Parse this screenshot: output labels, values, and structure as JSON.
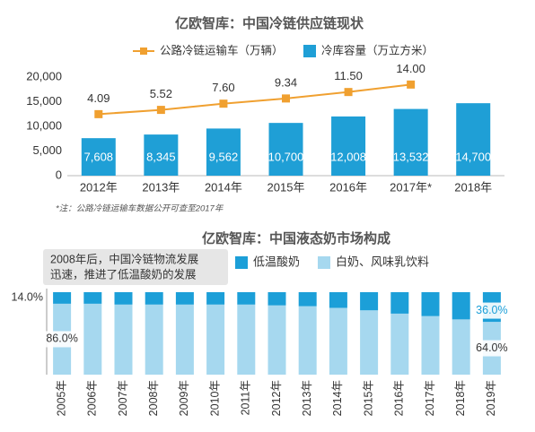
{
  "chart_data": [
    {
      "type": "bar",
      "title": "亿欧智库：中国冷链供应链现状",
      "categories": [
        "2012年",
        "2013年",
        "2014年",
        "2015年",
        "2016年",
        "2017年*",
        "2018年"
      ],
      "series": [
        {
          "name": "公路冷链运输车（万辆）",
          "type": "line",
          "axis": "y2",
          "color": "#f0a030",
          "values": [
            4.09,
            5.52,
            7.6,
            9.34,
            11.5,
            14.0,
            null
          ],
          "value_labels": [
            "4.09",
            "5.52",
            "7.60",
            "9.34",
            "11.50",
            "14.00",
            null
          ]
        },
        {
          "name": "冷库容量（万立方米）",
          "type": "bar",
          "color": "#1f9fd6",
          "values": [
            7608,
            8345,
            9562,
            10700,
            12008,
            13532,
            14700
          ],
          "value_labels": [
            "7,608",
            "8,345",
            "9,562",
            "10,700",
            "12,008",
            "13,532",
            "14,700"
          ]
        }
      ],
      "ylim": [
        0,
        20000
      ],
      "yticks": [
        0,
        {
          "value": 5000,
          "label": "5,000"
        },
        {
          "value": 10000,
          "label": "10,000"
        },
        {
          "value": 15000,
          "label": "15,000"
        },
        {
          "value": 20000,
          "label": "20,000"
        }
      ],
      "y2lim": [
        -16.5,
        16.5
      ],
      "note": "*注：公路冷链运输车数据公开可查至2017年"
    },
    {
      "type": "bar",
      "stacked": true,
      "title": "亿欧智库：中国液态奶市场构成",
      "annotation": [
        "2008年后，中国冷链物流发展",
        "迅速，推进了低温酸奶的发展"
      ],
      "categories": [
        "2005年",
        "2006年",
        "2007年",
        "2008年",
        "2009年",
        "2010年",
        "2011年",
        "2012年",
        "2013年",
        "2014年",
        "2015年",
        "2016年",
        "2017年",
        "2018年",
        "2019年"
      ],
      "series": [
        {
          "name": "低温酸奶",
          "color": "#1c9fd8",
          "values": [
            14,
            14,
            15,
            15,
            15,
            15,
            15,
            16,
            17,
            19,
            22,
            26,
            29,
            33,
            36
          ],
          "value_labels": [
            "14.0%",
            null,
            null,
            null,
            null,
            null,
            null,
            null,
            null,
            null,
            null,
            null,
            null,
            null,
            "36.0%"
          ]
        },
        {
          "name": "白奶、风味乳饮料",
          "color": "#a6d8ef",
          "values": [
            86,
            86,
            85,
            85,
            85,
            85,
            85,
            84,
            83,
            81,
            78,
            74,
            71,
            67,
            64
          ],
          "value_labels": [
            "86.0%",
            null,
            null,
            null,
            null,
            null,
            null,
            null,
            null,
            null,
            null,
            null,
            null,
            null,
            "64.0%"
          ]
        }
      ],
      "ylim": [
        0,
        100
      ]
    }
  ]
}
